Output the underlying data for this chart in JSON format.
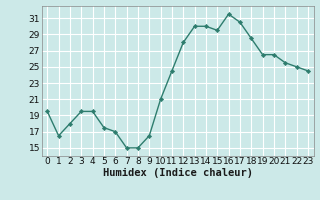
{
  "x": [
    0,
    1,
    2,
    3,
    4,
    5,
    6,
    7,
    8,
    9,
    10,
    11,
    12,
    13,
    14,
    15,
    16,
    17,
    18,
    19,
    20,
    21,
    22,
    23
  ],
  "y": [
    19.5,
    16.5,
    18.0,
    19.5,
    19.5,
    17.5,
    17.0,
    15.0,
    15.0,
    16.5,
    21.0,
    24.5,
    28.0,
    30.0,
    30.0,
    29.5,
    31.5,
    30.5,
    28.5,
    26.5,
    26.5,
    25.5,
    25.0,
    24.5
  ],
  "line_color": "#2e7d6e",
  "marker": "D",
  "marker_size": 2.2,
  "bg_color": "#cce9e8",
  "grid_color": "#ffffff",
  "grid_minor_color": "#e0f4f3",
  "xlabel": "Humidex (Indice chaleur)",
  "ylabel_ticks": [
    15,
    17,
    19,
    21,
    23,
    25,
    27,
    29,
    31
  ],
  "xlim": [
    -0.5,
    23.5
  ],
  "ylim": [
    14.0,
    32.5
  ],
  "tick_label_fontsize": 6.5,
  "xlabel_fontsize": 7.5,
  "linewidth": 1.0
}
